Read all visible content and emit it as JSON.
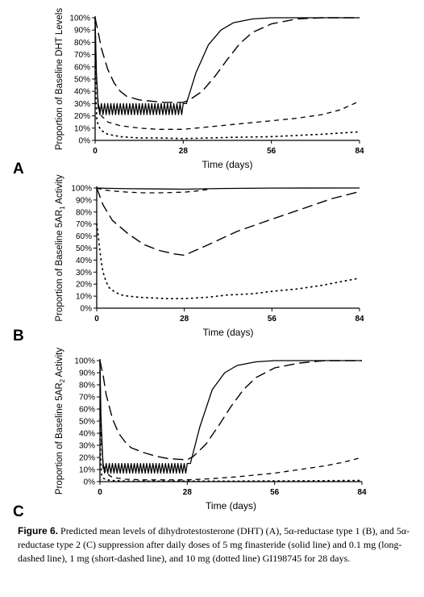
{
  "chart_data": [
    {
      "type": "line",
      "panel_label": "A",
      "xlabel": "Time (days)",
      "ylabel": "Proportion of Baseline DHT Levels",
      "xlim": [
        0,
        84
      ],
      "ylim": [
        0,
        100
      ],
      "x_ticks": [
        "0",
        "28",
        "56",
        "84"
      ],
      "y_ticks": [
        "0%",
        "10%",
        "20%",
        "30%",
        "40%",
        "50%",
        "60%",
        "70%",
        "80%",
        "90%",
        "100%"
      ],
      "grid": false,
      "series": [
        {
          "style": "solid",
          "oscillation": {
            "from_x": 1,
            "to_x": 28,
            "low": 21,
            "high": 30,
            "period": 1
          },
          "x": [
            0,
            0.4,
            1,
            28,
            29,
            32,
            36,
            40,
            44,
            50,
            56,
            64,
            72,
            84
          ],
          "y": [
            100,
            55,
            26,
            26,
            30,
            55,
            78,
            90,
            96,
            99,
            100,
            100,
            100,
            100
          ]
        },
        {
          "style": "long-dash",
          "x": [
            0,
            1,
            2,
            4,
            6,
            8,
            10,
            14,
            18,
            22,
            28,
            30,
            34,
            38,
            42,
            46,
            50,
            56,
            64,
            72,
            84
          ],
          "y": [
            100,
            88,
            75,
            58,
            47,
            40,
            36,
            33,
            32,
            31,
            31,
            33,
            40,
            52,
            66,
            79,
            88,
            95,
            99,
            100,
            100
          ]
        },
        {
          "style": "short-dash",
          "x": [
            0,
            0.3,
            1,
            2,
            4,
            8,
            14,
            20,
            28,
            36,
            44,
            56,
            64,
            72,
            78,
            84
          ],
          "y": [
            100,
            55,
            30,
            20,
            15,
            12,
            10,
            9,
            9,
            11,
            13,
            16,
            18,
            21,
            25,
            32
          ]
        },
        {
          "style": "dotted",
          "x": [
            0,
            0.2,
            0.5,
            1,
            2,
            4,
            8,
            14,
            20,
            28,
            36,
            44,
            56,
            64,
            72,
            78,
            84
          ],
          "y": [
            100,
            40,
            18,
            12,
            8,
            5,
            3,
            2,
            2,
            1.5,
            2,
            2.5,
            3,
            4,
            5,
            6,
            7
          ]
        }
      ]
    },
    {
      "type": "line",
      "panel_label": "B",
      "xlabel": "Time (days)",
      "ylabel": "Proportion of Baseline 5AR",
      "ylabel_subscript": "1",
      "ylabel_suffix": " Activity",
      "xlim": [
        0,
        84
      ],
      "ylim": [
        0,
        100
      ],
      "x_ticks": [
        "0",
        "28",
        "56",
        "84"
      ],
      "y_ticks": [
        "0%",
        "10%",
        "20%",
        "30%",
        "40%",
        "50%",
        "60%",
        "70%",
        "80%",
        "90%",
        "100%"
      ],
      "grid": false,
      "series": [
        {
          "style": "solid",
          "x": [
            0,
            3,
            10,
            20,
            28,
            40,
            56,
            84
          ],
          "y": [
            100,
            99.7,
            99.4,
            99.2,
            99,
            99.6,
            99.9,
            100
          ]
        },
        {
          "style": "short-dash",
          "x": [
            0,
            2,
            5,
            10,
            15,
            20,
            28,
            32,
            36
          ],
          "y": [
            100,
            98.5,
            97.5,
            96.5,
            96,
            96,
            96.5,
            97.5,
            99
          ]
        },
        {
          "style": "long-dash",
          "x": [
            0,
            2,
            5,
            10,
            15,
            20,
            25,
            28,
            35,
            45,
            56,
            65,
            75,
            84
          ],
          "y": [
            100,
            86,
            73,
            62,
            53,
            48,
            45,
            44,
            52,
            64,
            74,
            82,
            91,
            97
          ]
        },
        {
          "style": "dotted",
          "x": [
            0,
            0.5,
            1,
            1.5,
            2,
            3,
            4,
            6,
            8,
            10,
            14,
            18,
            22,
            28,
            35,
            42,
            50,
            56,
            64,
            72,
            80,
            84
          ],
          "y": [
            70,
            60,
            48,
            38,
            30,
            22,
            17,
            13,
            11,
            10,
            9,
            8.5,
            8,
            8,
            9,
            11,
            12,
            14,
            16,
            19,
            23,
            25
          ]
        }
      ]
    },
    {
      "type": "line",
      "panel_label": "C",
      "xlabel": "Time (days)",
      "ylabel": "Proportion of Baseline 5AR",
      "ylabel_subscript": "2",
      "ylabel_suffix": " Activity",
      "xlim": [
        0,
        84
      ],
      "ylim": [
        0,
        100
      ],
      "x_ticks": [
        "0",
        "28",
        "56",
        "84"
      ],
      "y_ticks": [
        "0%",
        "10%",
        "20%",
        "30%",
        "40%",
        "50%",
        "60%",
        "70%",
        "80%",
        "90%",
        "100%"
      ],
      "grid": false,
      "series": [
        {
          "style": "solid",
          "oscillation": {
            "from_x": 1,
            "to_x": 28,
            "low": 7,
            "high": 15,
            "period": 1
          },
          "x": [
            0,
            0.3,
            1,
            28,
            29,
            32,
            36,
            40,
            44,
            50,
            56,
            64,
            72,
            84
          ],
          "y": [
            100,
            55,
            11,
            11,
            15,
            45,
            76,
            90,
            96,
            99,
            100,
            100,
            100,
            100
          ]
        },
        {
          "style": "long-dash",
          "x": [
            0,
            1,
            2,
            4,
            6,
            8,
            10,
            14,
            18,
            22,
            28,
            30,
            34,
            38,
            42,
            46,
            50,
            56,
            64,
            72,
            84
          ],
          "y": [
            100,
            88,
            72,
            52,
            40,
            33,
            28,
            24,
            21,
            19,
            18,
            21,
            31,
            46,
            62,
            76,
            86,
            94,
            98,
            100,
            100
          ]
        },
        {
          "style": "short-dash",
          "x": [
            0,
            0.3,
            1,
            2,
            4,
            8,
            14,
            20,
            28,
            36,
            44,
            56,
            64,
            72,
            78,
            84
          ],
          "y": [
            100,
            40,
            15,
            7,
            3.5,
            2,
            1.5,
            1.5,
            1.5,
            2.5,
            4,
            7,
            10,
            13,
            16,
            20
          ]
        },
        {
          "style": "dotted",
          "x": [
            0,
            0.2,
            0.5,
            1,
            2,
            4,
            8,
            14,
            20,
            28,
            36,
            44,
            56,
            64,
            72,
            84
          ],
          "y": [
            60,
            20,
            6,
            3,
            1.5,
            1,
            0.5,
            0.5,
            0.5,
            0.5,
            0.5,
            0.5,
            0.6,
            0.7,
            0.8,
            1
          ]
        }
      ]
    }
  ],
  "caption": {
    "figure_label": "Figure 6.",
    "text": "Predicted mean levels of dihydrotestosterone (DHT) (A), 5α-reductase type 1 (B), and 5α-reductase type 2 (C) suppression after daily doses of 5 mg finasteride (solid line) and 0.1 mg (long-dashed line), 1 mg (short-dashed line), and 10 mg (dotted line) GI198745 for 28 days."
  }
}
